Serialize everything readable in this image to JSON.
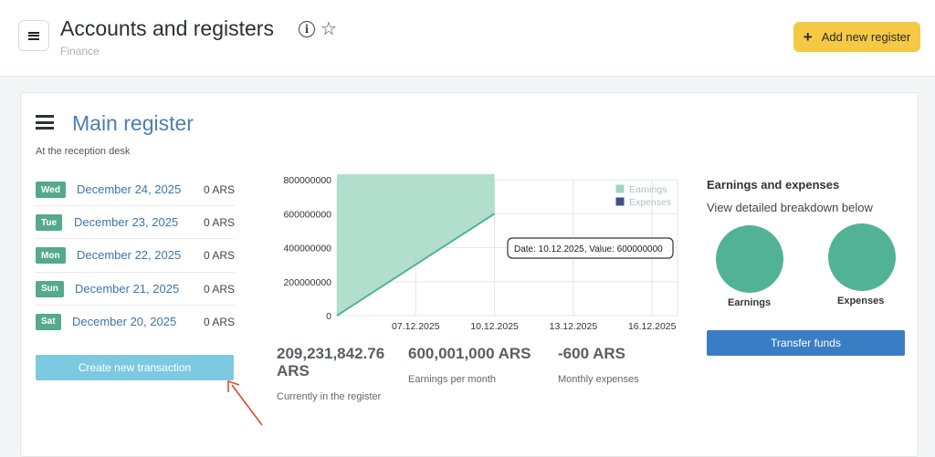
{
  "header": {
    "title": "Accounts and registers",
    "breadcrumb": "Finance",
    "add_button_label": "Add new register"
  },
  "register": {
    "title": "Main register",
    "subtitle": "At the reception desk",
    "days": [
      {
        "day": "Wed",
        "date": "December 24, 2025",
        "amount": "0 ARS"
      },
      {
        "day": "Tue",
        "date": "December 23, 2025",
        "amount": "0 ARS"
      },
      {
        "day": "Mon",
        "date": "December 22, 2025",
        "amount": "0 ARS"
      },
      {
        "day": "Sun",
        "date": "December 21, 2025",
        "amount": "0 ARS"
      },
      {
        "day": "Sat",
        "date": "December 20, 2025",
        "amount": "0 ARS"
      }
    ],
    "create_button_label": "Create new transaction"
  },
  "chart_data": {
    "type": "area",
    "x_ticks": [
      "07.12.2025",
      "10.12.2025",
      "13.12.2025",
      "16.12.2025"
    ],
    "y_ticks": [
      "800000000",
      "600000000",
      "400000000",
      "200000000",
      "0"
    ],
    "ylim": [
      0,
      800000000
    ],
    "legend_position": "top-right",
    "legend": [
      {
        "name": "Earnings",
        "color": "#9fd6c2"
      },
      {
        "name": "Expenses",
        "color": "#3f4f8c"
      }
    ],
    "series": [
      {
        "name": "Earnings",
        "points": [
          [
            "04.12.2025",
            0
          ],
          [
            "10.12.2025",
            600000000
          ]
        ]
      },
      {
        "name": "Expenses",
        "points": [
          [
            "04.12.2025",
            0
          ],
          [
            "10.12.2025",
            0
          ]
        ]
      }
    ],
    "tooltip": "Date: 10.12.2025, Value: 600000000"
  },
  "stats": {
    "balance": {
      "value": "209,231,842.76 ARS",
      "label": "Currently in the register"
    },
    "earnings": {
      "value": "600,001,000 ARS",
      "label": "Earnings per month"
    },
    "expenses": {
      "value": "-600 ARS",
      "label": "Monthly expenses"
    }
  },
  "side": {
    "title": "Earnings and expenses",
    "subtitle": "View detailed breakdown below",
    "earnings_label": "Earnings",
    "expenses_label": "Expenses",
    "transfer_button_label": "Transfer funds"
  },
  "colors": {
    "accent": "#f6c944",
    "green": "#52b394",
    "blue": "#3b7dc4",
    "arrow": "#e0482e"
  }
}
